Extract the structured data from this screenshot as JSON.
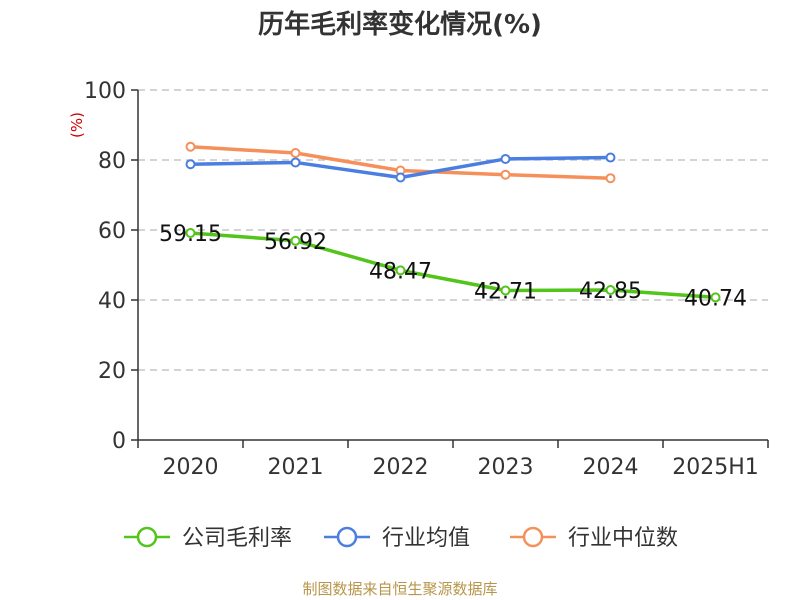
{
  "chart_data": {
    "type": "line",
    "title": "历年毛利率变化情况(%)",
    "ylabel": "(%)",
    "categories": [
      "2020",
      "2021",
      "2022",
      "2023",
      "2024",
      "2025H1"
    ],
    "ylim": [
      0,
      100
    ],
    "yticks": [
      0,
      20,
      40,
      60,
      80,
      100
    ],
    "grid": true,
    "legend_position": "bottom",
    "series": [
      {
        "name": "公司毛利率",
        "color": "#52c41a",
        "values": [
          59.15,
          56.92,
          48.47,
          42.71,
          42.85,
          40.74
        ],
        "labels": [
          "59.15",
          "56.92",
          "48.47",
          "42.71",
          "42.85",
          "40.74"
        ]
      },
      {
        "name": "行业均值",
        "color": "#4a7ee0",
        "values": [
          78.8,
          79.3,
          75.0,
          80.3,
          80.7,
          null
        ]
      },
      {
        "name": "行业中位数",
        "color": "#f5905a",
        "values": [
          83.8,
          82.0,
          77.0,
          75.8,
          74.8,
          null
        ]
      }
    ],
    "source": "制图数据来自恒生聚源数据库"
  }
}
